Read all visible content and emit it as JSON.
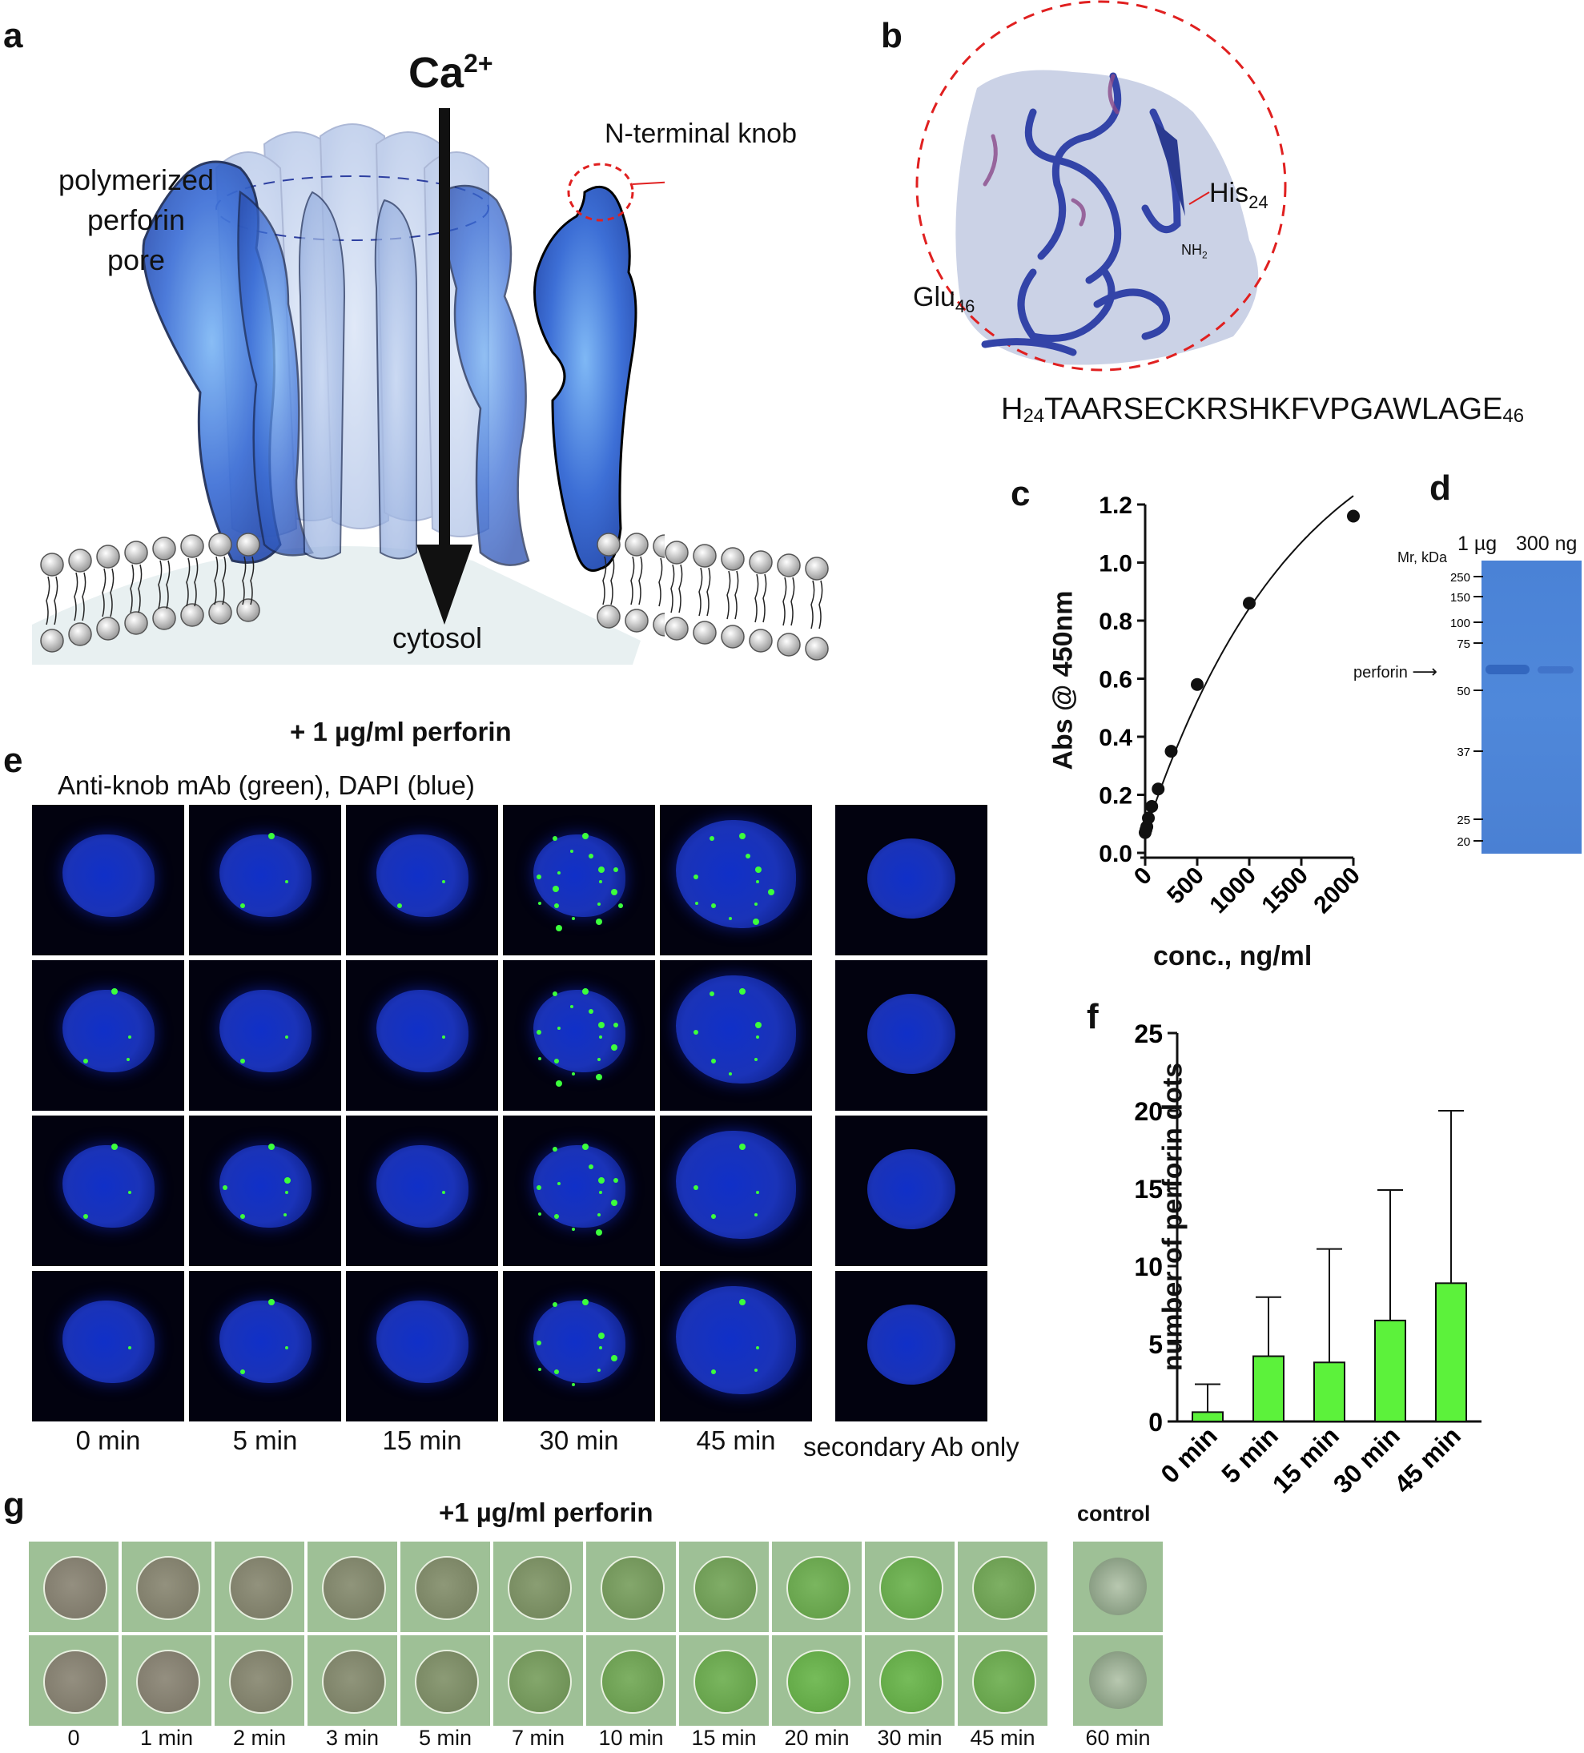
{
  "panel_a": {
    "letter": "a",
    "ion_label": "Ca",
    "ion_charge": "2+",
    "pore_label": [
      "polymerized",
      "perforin",
      "pore"
    ],
    "knob_label": "N-terminal knob",
    "cytosol_label": "cytosol"
  },
  "panel_b": {
    "letter": "b",
    "his_label": "His",
    "his_sub": "24",
    "nh2_label": "NH",
    "nh2_sub": "2",
    "glu_label": "Glu",
    "glu_sub": "46",
    "sequence_prefix": "H",
    "sequence_prefix_sub": "24",
    "sequence_body": "TAARSECKRSHKFVPGAWLAGE",
    "sequence_suffix_sub": "46"
  },
  "panel_c": {
    "letter": "c",
    "chart_data": {
      "type": "scatter",
      "x": [
        0,
        8,
        16,
        31,
        63,
        125,
        250,
        500,
        1000,
        2000
      ],
      "y": [
        0.07,
        0.08,
        0.09,
        0.12,
        0.16,
        0.22,
        0.35,
        0.58,
        0.86,
        1.16
      ],
      "fit": "curve",
      "xlabel": "conc., ng/ml",
      "ylabel": "Abs @ 450nm",
      "xlim": [
        0,
        2000
      ],
      "ylim": [
        0,
        1.2
      ],
      "xticks": [
        "0",
        "500",
        "1000",
        "1500",
        "2000"
      ],
      "yticks": [
        "0.0",
        "0.2",
        "0.4",
        "0.6",
        "0.8",
        "1.0",
        "1.2"
      ]
    }
  },
  "panel_d": {
    "letter": "d",
    "mr_label": "Mr, kDa",
    "lanes": [
      "1 µg",
      "300 ng"
    ],
    "markers": [
      "250",
      "150",
      "100",
      "75",
      "50",
      "37",
      "25",
      "20"
    ],
    "band_label": "perforin"
  },
  "panel_e": {
    "letter": "e",
    "heading": "+ 1 µg/ml perforin",
    "stain_label": "Anti-knob mAb (green), DAPI (blue)",
    "time_labels": [
      "0 min",
      "5 min",
      "15 min",
      "30 min",
      "45 min"
    ],
    "control_label": "secondary Ab only"
  },
  "panel_f": {
    "letter": "f",
    "chart_data": {
      "type": "bar",
      "categories": [
        "0 min",
        "5 min",
        "15 min",
        "30 min",
        "45 min"
      ],
      "values": [
        0.6,
        4.2,
        3.8,
        6.5,
        8.9
      ],
      "error_upper": [
        2.4,
        8.0,
        11.1,
        14.9,
        20.0
      ],
      "ylabel": "number of perforin dots",
      "ylim": [
        0,
        25
      ],
      "yticks": [
        "0",
        "5",
        "10",
        "15",
        "20",
        "25"
      ],
      "bar_color": "#5cf23b"
    }
  },
  "panel_g": {
    "letter": "g",
    "heading": "+1 µg/ml perforin",
    "control_heading": "control",
    "time_labels": [
      "0",
      "1 min",
      "2 min",
      "3 min",
      "5 min",
      "7 min",
      "10 min",
      "15 min",
      "20 min",
      "30 min",
      "45 min"
    ],
    "control_time": "60 min",
    "green_intensity_top": [
      0.05,
      0.08,
      0.1,
      0.15,
      0.2,
      0.3,
      0.45,
      0.55,
      0.7,
      0.75,
      0.6
    ],
    "green_intensity_bottom": [
      0.05,
      0.05,
      0.1,
      0.15,
      0.25,
      0.45,
      0.6,
      0.7,
      0.8,
      0.8,
      0.7
    ]
  }
}
